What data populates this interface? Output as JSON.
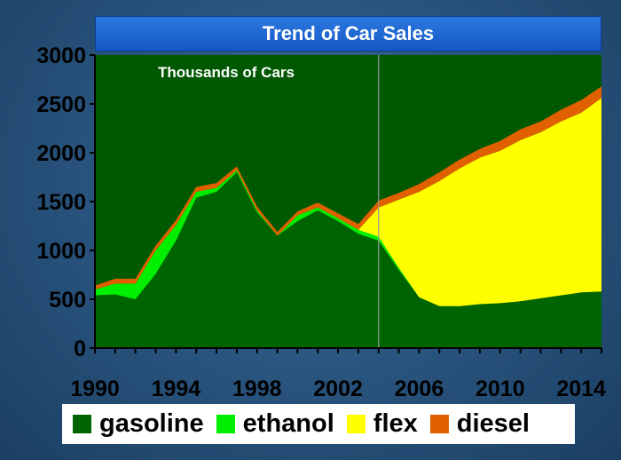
{
  "chart_data": {
    "type": "area",
    "title": "Trend of Car Sales",
    "subtitle": "Thousands of Cars",
    "x": [
      1990,
      1991,
      1992,
      1993,
      1994,
      1995,
      1996,
      1997,
      1998,
      1999,
      2000,
      2001,
      2002,
      2003,
      2004,
      2005,
      2006,
      2007,
      2008,
      2009,
      2010,
      2011,
      2012,
      2013,
      2014,
      2015
    ],
    "x_ticks": [
      "1990",
      "1994",
      "1998",
      "2002",
      "2006",
      "2010",
      "2014"
    ],
    "x_tick_values": [
      1990,
      1994,
      1998,
      2002,
      2006,
      2010,
      2014
    ],
    "y_ticks": [
      "0",
      "500",
      "1000",
      "1500",
      "2000",
      "2500",
      "3000"
    ],
    "y_tick_values": [
      0,
      500,
      1000,
      1500,
      2000,
      2500,
      3000
    ],
    "xlim": [
      1990,
      2015
    ],
    "ylim": [
      0,
      3000
    ],
    "stacked": true,
    "marker_year": 2004,
    "series": [
      {
        "name": "gasoline",
        "color": "#006400",
        "values": [
          540,
          550,
          500,
          760,
          1100,
          1540,
          1600,
          1800,
          1390,
          1150,
          1300,
          1410,
          1300,
          1170,
          1100,
          800,
          520,
          430,
          430,
          450,
          460,
          480,
          510,
          540,
          570,
          580
        ]
      },
      {
        "name": "ethanol",
        "color": "#00ee00",
        "values": [
          60,
          110,
          160,
          240,
          160,
          60,
          40,
          20,
          20,
          0,
          60,
          30,
          30,
          40,
          40,
          20,
          0,
          0,
          0,
          0,
          0,
          0,
          0,
          0,
          0,
          0
        ]
      },
      {
        "name": "flex",
        "color": "#ffff00",
        "values": [
          0,
          0,
          0,
          0,
          0,
          0,
          0,
          0,
          0,
          0,
          0,
          0,
          0,
          0,
          300,
          700,
          1080,
          1280,
          1410,
          1500,
          1560,
          1650,
          1700,
          1780,
          1840,
          1980
        ]
      },
      {
        "name": "diesel",
        "color": "#e06000",
        "values": [
          40,
          50,
          50,
          50,
          50,
          50,
          50,
          40,
          40,
          40,
          40,
          50,
          50,
          60,
          70,
          70,
          80,
          90,
          90,
          90,
          100,
          110,
          110,
          120,
          130,
          120
        ]
      }
    ]
  }
}
